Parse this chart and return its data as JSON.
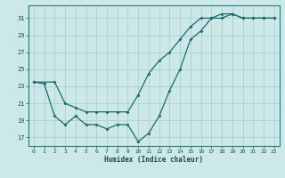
{
  "xlabel": "Humidex (Indice chaleur)",
  "background_color": "#cde8e8",
  "grid_color": "#afd0d0",
  "line_color": "#1a6b6b",
  "xlim": [
    -0.5,
    23.5
  ],
  "ylim": [
    16,
    32.5
  ],
  "xticks": [
    0,
    1,
    2,
    3,
    4,
    5,
    6,
    7,
    8,
    9,
    10,
    11,
    12,
    13,
    14,
    15,
    16,
    17,
    18,
    19,
    20,
    21,
    22,
    23
  ],
  "yticks": [
    17,
    19,
    21,
    23,
    25,
    27,
    29,
    31
  ],
  "line1_x": [
    0,
    1,
    2,
    3,
    4,
    5,
    6,
    7,
    8,
    9,
    10,
    11,
    12,
    13,
    14,
    15,
    16,
    17,
    18,
    19,
    20,
    21,
    22,
    23
  ],
  "line1_y": [
    23.5,
    23.3,
    19.5,
    18.5,
    19.5,
    18.5,
    18.5,
    18.0,
    18.5,
    18.5,
    16.5,
    17.5,
    19.5,
    22.5,
    25.0,
    28.5,
    29.5,
    31.0,
    31.0,
    31.5,
    31.0,
    31.0,
    31.0,
    31.0
  ],
  "line2_x": [
    0,
    2,
    3,
    4,
    5,
    6,
    7,
    8,
    9,
    10,
    11,
    12,
    13,
    14,
    15,
    16,
    17,
    18,
    19,
    20,
    21,
    22,
    23
  ],
  "line2_y": [
    23.5,
    23.5,
    21.0,
    20.5,
    20.0,
    20.0,
    20.0,
    20.0,
    20.0,
    22.0,
    24.5,
    26.0,
    27.0,
    28.5,
    30.0,
    31.0,
    31.0,
    31.5,
    31.5,
    31.0,
    31.0,
    31.0,
    31.0
  ]
}
